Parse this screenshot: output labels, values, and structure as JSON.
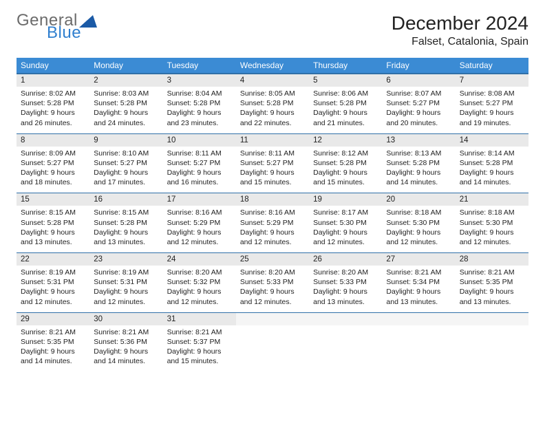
{
  "logo": {
    "general": "General",
    "blue": "Blue",
    "tri_color": "#1b5aa6"
  },
  "header": {
    "month_title": "December 2024",
    "location": "Falset, Catalonia, Spain"
  },
  "colors": {
    "header_bg": "#3b8bd4",
    "header_text": "#ffffff",
    "row_divider": "#2f6fa8",
    "daynum_bg": "#e9e9e9",
    "body_text": "#222222"
  },
  "daynames": [
    "Sunday",
    "Monday",
    "Tuesday",
    "Wednesday",
    "Thursday",
    "Friday",
    "Saturday"
  ],
  "weeks": [
    [
      {
        "n": "1",
        "sr": "8:02 AM",
        "ss": "5:28 PM",
        "dl": "9 hours and 26 minutes."
      },
      {
        "n": "2",
        "sr": "8:03 AM",
        "ss": "5:28 PM",
        "dl": "9 hours and 24 minutes."
      },
      {
        "n": "3",
        "sr": "8:04 AM",
        "ss": "5:28 PM",
        "dl": "9 hours and 23 minutes."
      },
      {
        "n": "4",
        "sr": "8:05 AM",
        "ss": "5:28 PM",
        "dl": "9 hours and 22 minutes."
      },
      {
        "n": "5",
        "sr": "8:06 AM",
        "ss": "5:28 PM",
        "dl": "9 hours and 21 minutes."
      },
      {
        "n": "6",
        "sr": "8:07 AM",
        "ss": "5:27 PM",
        "dl": "9 hours and 20 minutes."
      },
      {
        "n": "7",
        "sr": "8:08 AM",
        "ss": "5:27 PM",
        "dl": "9 hours and 19 minutes."
      }
    ],
    [
      {
        "n": "8",
        "sr": "8:09 AM",
        "ss": "5:27 PM",
        "dl": "9 hours and 18 minutes."
      },
      {
        "n": "9",
        "sr": "8:10 AM",
        "ss": "5:27 PM",
        "dl": "9 hours and 17 minutes."
      },
      {
        "n": "10",
        "sr": "8:11 AM",
        "ss": "5:27 PM",
        "dl": "9 hours and 16 minutes."
      },
      {
        "n": "11",
        "sr": "8:11 AM",
        "ss": "5:27 PM",
        "dl": "9 hours and 15 minutes."
      },
      {
        "n": "12",
        "sr": "8:12 AM",
        "ss": "5:28 PM",
        "dl": "9 hours and 15 minutes."
      },
      {
        "n": "13",
        "sr": "8:13 AM",
        "ss": "5:28 PM",
        "dl": "9 hours and 14 minutes."
      },
      {
        "n": "14",
        "sr": "8:14 AM",
        "ss": "5:28 PM",
        "dl": "9 hours and 14 minutes."
      }
    ],
    [
      {
        "n": "15",
        "sr": "8:15 AM",
        "ss": "5:28 PM",
        "dl": "9 hours and 13 minutes."
      },
      {
        "n": "16",
        "sr": "8:15 AM",
        "ss": "5:28 PM",
        "dl": "9 hours and 13 minutes."
      },
      {
        "n": "17",
        "sr": "8:16 AM",
        "ss": "5:29 PM",
        "dl": "9 hours and 12 minutes."
      },
      {
        "n": "18",
        "sr": "8:16 AM",
        "ss": "5:29 PM",
        "dl": "9 hours and 12 minutes."
      },
      {
        "n": "19",
        "sr": "8:17 AM",
        "ss": "5:30 PM",
        "dl": "9 hours and 12 minutes."
      },
      {
        "n": "20",
        "sr": "8:18 AM",
        "ss": "5:30 PM",
        "dl": "9 hours and 12 minutes."
      },
      {
        "n": "21",
        "sr": "8:18 AM",
        "ss": "5:30 PM",
        "dl": "9 hours and 12 minutes."
      }
    ],
    [
      {
        "n": "22",
        "sr": "8:19 AM",
        "ss": "5:31 PM",
        "dl": "9 hours and 12 minutes."
      },
      {
        "n": "23",
        "sr": "8:19 AM",
        "ss": "5:31 PM",
        "dl": "9 hours and 12 minutes."
      },
      {
        "n": "24",
        "sr": "8:20 AM",
        "ss": "5:32 PM",
        "dl": "9 hours and 12 minutes."
      },
      {
        "n": "25",
        "sr": "8:20 AM",
        "ss": "5:33 PM",
        "dl": "9 hours and 12 minutes."
      },
      {
        "n": "26",
        "sr": "8:20 AM",
        "ss": "5:33 PM",
        "dl": "9 hours and 13 minutes."
      },
      {
        "n": "27",
        "sr": "8:21 AM",
        "ss": "5:34 PM",
        "dl": "9 hours and 13 minutes."
      },
      {
        "n": "28",
        "sr": "8:21 AM",
        "ss": "5:35 PM",
        "dl": "9 hours and 13 minutes."
      }
    ],
    [
      {
        "n": "29",
        "sr": "8:21 AM",
        "ss": "5:35 PM",
        "dl": "9 hours and 14 minutes."
      },
      {
        "n": "30",
        "sr": "8:21 AM",
        "ss": "5:36 PM",
        "dl": "9 hours and 14 minutes."
      },
      {
        "n": "31",
        "sr": "8:21 AM",
        "ss": "5:37 PM",
        "dl": "9 hours and 15 minutes."
      },
      null,
      null,
      null,
      null
    ]
  ],
  "labels": {
    "sunrise": "Sunrise:",
    "sunset": "Sunset:",
    "daylight": "Daylight:"
  }
}
